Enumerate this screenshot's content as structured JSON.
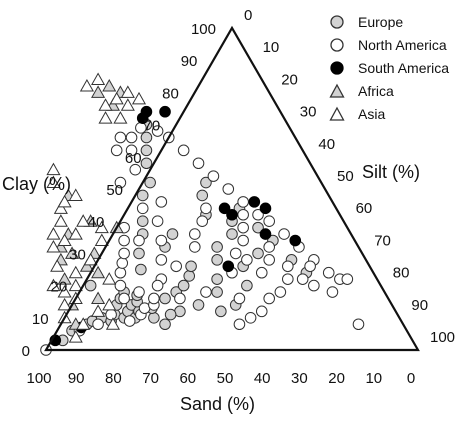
{
  "chart_data": {
    "type": "scatter",
    "subtype": "ternary",
    "title": "",
    "axes": {
      "clay": {
        "label": "Clay (%)",
        "ticks": [
          "0",
          "10",
          "20",
          "30",
          "40",
          "50",
          "60",
          "70",
          "80",
          "90",
          "100"
        ]
      },
      "silt": {
        "label": "Silt (%)",
        "ticks": [
          "0",
          "10",
          "20",
          "30",
          "40",
          "50",
          "60",
          "70",
          "80",
          "90",
          "100"
        ]
      },
      "sand": {
        "label": "Sand (%)",
        "ticks": [
          "100",
          "90",
          "80",
          "70",
          "60",
          "50",
          "40",
          "30",
          "20",
          "10",
          "0"
        ]
      }
    },
    "grid": false,
    "legend": {
      "position": "top-right"
    },
    "series": [
      {
        "name": "Europe",
        "marker": "circle",
        "fill": "#d3d3d3",
        "stroke": "#333333",
        "points": [
          {
            "sand": 94,
            "clay": 3
          },
          {
            "sand": 90,
            "clay": 6
          },
          {
            "sand": 85,
            "clay": 8
          },
          {
            "sand": 83,
            "clay": 9
          },
          {
            "sand": 80,
            "clay": 10
          },
          {
            "sand": 78,
            "clay": 9
          },
          {
            "sand": 76,
            "clay": 11
          },
          {
            "sand": 74,
            "clay": 10
          },
          {
            "sand": 72,
            "clay": 12
          },
          {
            "sand": 71,
            "clay": 10
          },
          {
            "sand": 70,
            "clay": 14
          },
          {
            "sand": 69,
            "clay": 12
          },
          {
            "sand": 68,
            "clay": 15
          },
          {
            "sand": 66,
            "clay": 10
          },
          {
            "sand": 65,
            "clay": 13
          },
          {
            "sand": 74,
            "clay": 14
          },
          {
            "sand": 72,
            "clay": 16
          },
          {
            "sand": 70,
            "clay": 18
          },
          {
            "sand": 67,
            "clay": 17
          },
          {
            "sand": 78,
            "clay": 20
          },
          {
            "sand": 62,
            "clay": 25
          },
          {
            "sand": 60,
            "clay": 30
          },
          {
            "sand": 56,
            "clay": 36
          },
          {
            "sand": 54,
            "clay": 40
          },
          {
            "sand": 50,
            "clay": 48
          },
          {
            "sand": 46,
            "clay": 52
          },
          {
            "sand": 44,
            "clay": 58
          },
          {
            "sand": 42,
            "clay": 62
          },
          {
            "sand": 40,
            "clay": 66
          },
          {
            "sand": 38,
            "clay": 70
          },
          {
            "sand": 56,
            "clay": 18
          },
          {
            "sand": 53,
            "clay": 20
          },
          {
            "sand": 50,
            "clay": 23
          },
          {
            "sand": 48,
            "clay": 26
          },
          {
            "sand": 45,
            "clay": 18
          },
          {
            "sand": 43,
            "clay": 22
          },
          {
            "sand": 40,
            "clay": 28
          },
          {
            "sand": 38,
            "clay": 32
          },
          {
            "sand": 36,
            "clay": 20
          },
          {
            "sand": 34,
            "clay": 26
          },
          {
            "sand": 32,
            "clay": 36
          },
          {
            "sand": 30,
            "clay": 40
          },
          {
            "sand": 28,
            "clay": 30
          },
          {
            "sand": 26,
            "clay": 44
          },
          {
            "sand": 24,
            "clay": 38
          },
          {
            "sand": 22,
            "clay": 34
          },
          {
            "sand": 20,
            "clay": 28
          },
          {
            "sand": 18,
            "clay": 24
          },
          {
            "sand": 58,
            "clay": 12
          },
          {
            "sand": 52,
            "clay": 14
          },
          {
            "sand": 47,
            "clay": 12
          },
          {
            "sand": 42,
            "clay": 14
          },
          {
            "sand": 36,
            "clay": 42
          },
          {
            "sand": 34,
            "clay": 48
          },
          {
            "sand": 31,
            "clay": 52
          },
          {
            "sand": 48,
            "clay": 36
          },
          {
            "sand": 52,
            "clay": 32
          },
          {
            "sand": 64,
            "clay": 8
          },
          {
            "sand": 61,
            "clay": 11
          },
          {
            "sand": 60,
            "clay": 16
          }
        ]
      },
      {
        "name": "North America",
        "marker": "circle",
        "fill": "#ffffff",
        "stroke": "#333333",
        "points": [
          {
            "sand": 100,
            "clay": 0
          },
          {
            "sand": 88,
            "clay": 6
          },
          {
            "sand": 82,
            "clay": 8
          },
          {
            "sand": 77,
            "clay": 11
          },
          {
            "sand": 73,
            "clay": 9
          },
          {
            "sand": 69,
            "clay": 11
          },
          {
            "sand": 67,
            "clay": 13
          },
          {
            "sand": 64,
            "clay": 14
          },
          {
            "sand": 63,
            "clay": 16
          },
          {
            "sand": 70,
            "clay": 20
          },
          {
            "sand": 68,
            "clay": 24
          },
          {
            "sand": 66,
            "clay": 27
          },
          {
            "sand": 64,
            "clay": 30
          },
          {
            "sand": 62,
            "clay": 34
          },
          {
            "sand": 60,
            "clay": 38
          },
          {
            "sand": 58,
            "clay": 22
          },
          {
            "sand": 55,
            "clay": 28
          },
          {
            "sand": 52,
            "clay": 44
          },
          {
            "sand": 48,
            "clay": 56
          },
          {
            "sand": 46,
            "clay": 62
          },
          {
            "sand": 44,
            "clay": 66
          },
          {
            "sand": 40,
            "clay": 69
          },
          {
            "sand": 36,
            "clay": 68
          },
          {
            "sand": 34,
            "clay": 66
          },
          {
            "sand": 32,
            "clay": 62
          },
          {
            "sand": 30,
            "clay": 58
          },
          {
            "sand": 28,
            "clay": 54
          },
          {
            "sand": 26,
            "clay": 50
          },
          {
            "sand": 24,
            "clay": 46
          },
          {
            "sand": 22,
            "clay": 42
          },
          {
            "sand": 20,
            "clay": 40
          },
          {
            "sand": 18,
            "clay": 36
          },
          {
            "sand": 16,
            "clay": 32
          },
          {
            "sand": 14,
            "clay": 28
          },
          {
            "sand": 12,
            "clay": 24
          },
          {
            "sand": 10,
            "clay": 22
          },
          {
            "sand": 8,
            "clay": 22
          },
          {
            "sand": 16,
            "clay": 26
          },
          {
            "sand": 24,
            "clay": 22
          },
          {
            "sand": 28,
            "clay": 18
          },
          {
            "sand": 32,
            "clay": 16
          },
          {
            "sand": 36,
            "clay": 12
          },
          {
            "sand": 40,
            "clay": 10
          },
          {
            "sand": 44,
            "clay": 8
          },
          {
            "sand": 40,
            "clay": 16
          },
          {
            "sand": 38,
            "clay": 24
          },
          {
            "sand": 34,
            "clay": 30
          },
          {
            "sand": 30,
            "clay": 34
          },
          {
            "sand": 28,
            "clay": 38
          },
          {
            "sand": 26,
            "clay": 42
          },
          {
            "sand": 32,
            "clay": 28
          },
          {
            "sand": 30,
            "clay": 24
          },
          {
            "sand": 26,
            "clay": 28
          },
          {
            "sand": 24,
            "clay": 32
          },
          {
            "sand": 22,
            "clay": 26
          },
          {
            "sand": 20,
            "clay": 22
          },
          {
            "sand": 18,
            "clay": 20
          },
          {
            "sand": 14,
            "clay": 18
          },
          {
            "sand": 12,
            "clay": 8
          },
          {
            "sand": 44,
            "clay": 32
          },
          {
            "sand": 42,
            "clay": 36
          },
          {
            "sand": 38,
            "clay": 40
          },
          {
            "sand": 35,
            "clay": 44
          },
          {
            "sand": 52,
            "clay": 26
          },
          {
            "sand": 56,
            "clay": 16
          },
          {
            "sand": 60,
            "clay": 20
          },
          {
            "sand": 58,
            "clay": 34
          },
          {
            "sand": 50,
            "clay": 40
          },
          {
            "sand": 48,
            "clay": 18
          },
          {
            "sand": 46,
            "clay": 46
          },
          {
            "sand": 50,
            "clay": 62
          },
          {
            "sand": 54,
            "clay": 52
          },
          {
            "sand": 47,
            "clay": 66
          },
          {
            "sand": 52,
            "clay": 34
          },
          {
            "sand": 66,
            "clay": 18
          },
          {
            "sand": 71,
            "clay": 16
          }
        ]
      },
      {
        "name": "South America",
        "marker": "circle",
        "fill": "#000000",
        "stroke": "#000000",
        "points": [
          {
            "sand": 96,
            "clay": 3
          },
          {
            "sand": 87,
            "clay": 7
          },
          {
            "sand": 38,
            "clay": 72
          },
          {
            "sand": 36,
            "clay": 74
          },
          {
            "sand": 31,
            "clay": 74
          },
          {
            "sand": 30,
            "clay": 44
          },
          {
            "sand": 29,
            "clay": 42
          },
          {
            "sand": 21,
            "clay": 46
          },
          {
            "sand": 19,
            "clay": 44
          },
          {
            "sand": 23,
            "clay": 36
          },
          {
            "sand": 16,
            "clay": 34
          },
          {
            "sand": 38,
            "clay": 26
          }
        ]
      },
      {
        "name": "Africa",
        "marker": "triangle",
        "fill": "#d3d3d3",
        "stroke": "#333333",
        "points": [
          {
            "sand": 82,
            "clay": 28
          },
          {
            "sand": 80,
            "clay": 32
          },
          {
            "sand": 78,
            "clay": 30
          },
          {
            "sand": 76,
            "clay": 36
          },
          {
            "sand": 70,
            "clay": 48
          },
          {
            "sand": 68,
            "clay": 40
          },
          {
            "sand": 84,
            "clay": 22
          },
          {
            "sand": 74,
            "clay": 24
          },
          {
            "sand": 72,
            "clay": 30
          },
          {
            "sand": 46,
            "clay": 80
          },
          {
            "sand": 42,
            "clay": 82
          },
          {
            "sand": 44,
            "clay": 76
          },
          {
            "sand": 40,
            "clay": 80
          },
          {
            "sand": 88,
            "clay": 8
          },
          {
            "sand": 78,
            "clay": 16
          },
          {
            "sand": 62,
            "clay": 38
          },
          {
            "sand": 86,
            "clay": 14
          },
          {
            "sand": 76,
            "clay": 26
          }
        ]
      },
      {
        "name": "Asia",
        "marker": "triangle",
        "fill": "#ffffff",
        "stroke": "#333333",
        "points": [
          {
            "sand": 90,
            "clay": 10
          },
          {
            "sand": 88,
            "clay": 14
          },
          {
            "sand": 86,
            "clay": 18
          },
          {
            "sand": 84,
            "clay": 16
          },
          {
            "sand": 82,
            "clay": 20
          },
          {
            "sand": 80,
            "clay": 24
          },
          {
            "sand": 84,
            "clay": 26
          },
          {
            "sand": 82,
            "clay": 32
          },
          {
            "sand": 78,
            "clay": 34
          },
          {
            "sand": 76,
            "clay": 40
          },
          {
            "sand": 74,
            "clay": 44
          },
          {
            "sand": 72,
            "clay": 52
          },
          {
            "sand": 70,
            "clay": 56
          },
          {
            "sand": 72,
            "clay": 46
          },
          {
            "sand": 70,
            "clay": 40
          },
          {
            "sand": 68,
            "clay": 34
          },
          {
            "sand": 66,
            "clay": 38
          },
          {
            "sand": 74,
            "clay": 28
          },
          {
            "sand": 80,
            "clay": 12
          },
          {
            "sand": 76,
            "clay": 14
          },
          {
            "sand": 72,
            "clay": 22
          },
          {
            "sand": 48,
            "clay": 82
          },
          {
            "sand": 44,
            "clay": 84
          },
          {
            "sand": 42,
            "clay": 78
          },
          {
            "sand": 40,
            "clay": 76
          },
          {
            "sand": 38,
            "clay": 80
          },
          {
            "sand": 36,
            "clay": 78
          },
          {
            "sand": 46,
            "clay": 76
          },
          {
            "sand": 48,
            "clay": 72
          },
          {
            "sand": 44,
            "clay": 72
          },
          {
            "sand": 86,
            "clay": 8
          },
          {
            "sand": 90,
            "clay": 4
          },
          {
            "sand": 78,
            "clay": 8
          },
          {
            "sand": 74,
            "clay": 36
          },
          {
            "sand": 88,
            "clay": 20
          },
          {
            "sand": 80,
            "clay": 36
          },
          {
            "sand": 68,
            "clay": 48
          }
        ]
      }
    ]
  }
}
